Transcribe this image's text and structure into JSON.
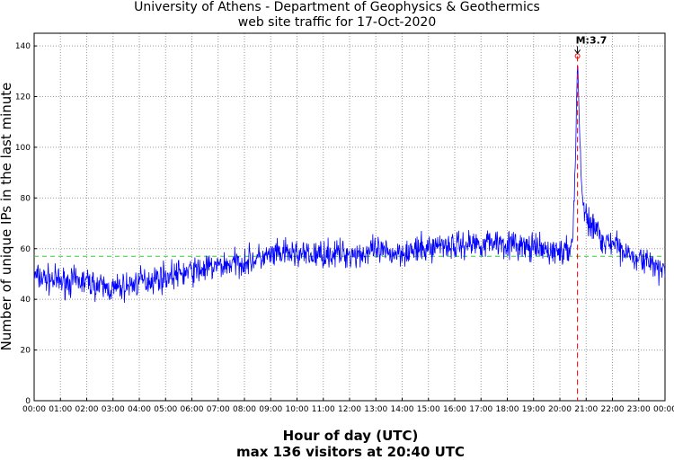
{
  "chart_data": {
    "type": "line",
    "title": "University of Athens - Department of Geophysics & Geothermics",
    "subtitle": "web site traffic for 17-Oct-2020",
    "xlabel": "Hour of day (UTC)",
    "ylabel": "Number of unique IPs in the last minute",
    "footer": "max 136 visitors at 20:40 UTC",
    "xlim": [
      0,
      24
    ],
    "ylim": [
      0,
      145
    ],
    "x_tick_labels": [
      "00:00",
      "01:00",
      "02:00",
      "03:00",
      "04:00",
      "05:00",
      "06:00",
      "07:00",
      "08:00",
      "09:00",
      "10:00",
      "11:00",
      "12:00",
      "13:00",
      "14:00",
      "15:00",
      "16:00",
      "17:00",
      "18:00",
      "19:00",
      "20:00",
      "21:00",
      "22:00",
      "23:00",
      "00:00"
    ],
    "y_ticks": [
      0,
      20,
      40,
      60,
      80,
      100,
      120,
      140
    ],
    "grid": true,
    "mean_line": 57,
    "event": {
      "label": "M:3.7",
      "time": "20:40",
      "hour": 20.67,
      "value": 136
    },
    "series": [
      {
        "x": [
          0,
          0.5,
          1,
          1.5,
          2,
          2.5,
          3,
          3.5,
          4,
          4.5,
          5,
          5.5,
          6,
          6.5,
          7,
          7.5,
          8,
          8.5,
          9,
          9.5,
          10,
          10.5,
          11,
          11.5,
          12,
          12.5,
          13,
          13.5,
          14,
          14.5,
          15,
          15.5,
          16,
          16.5,
          17,
          17.5,
          18,
          18.5,
          19,
          19.5,
          20,
          20.3,
          20.5,
          20.6,
          20.67,
          20.75,
          20.85,
          21,
          21.25,
          21.5,
          21.75,
          22,
          22.5,
          23,
          23.5,
          24
        ],
        "values": [
          49,
          48,
          47,
          47,
          47,
          45,
          44,
          45,
          47,
          48,
          49,
          50,
          51,
          52,
          53,
          54,
          55,
          56,
          57,
          58,
          58,
          57,
          58,
          58,
          58,
          58,
          59,
          58,
          59,
          59,
          60,
          62,
          61,
          62,
          62,
          63,
          62,
          61,
          60,
          59,
          59,
          58,
          65,
          100,
          136,
          105,
          80,
          72,
          69,
          66,
          63,
          61,
          59,
          57,
          53,
          51
        ]
      }
    ]
  }
}
